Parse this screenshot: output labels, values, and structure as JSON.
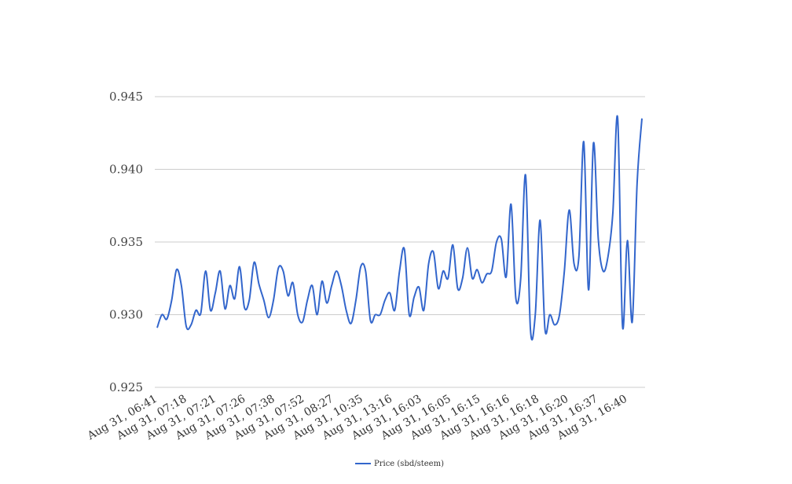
{
  "chart_data": {
    "type": "line",
    "title": "",
    "xlabel": "",
    "ylabel": "",
    "ylim": [
      0.925,
      0.945
    ],
    "yticks": [
      "0.925",
      "0.930",
      "0.935",
      "0.940",
      "0.945"
    ],
    "xtick_labels": [
      "Aug 31, 06:41",
      "Aug 31, 07:18",
      "Aug 31, 07:21",
      "Aug 31, 07:26",
      "Aug 31, 07:38",
      "Aug 31, 07:52",
      "Aug 31, 08:27",
      "Aug 31, 10:35",
      "Aug 31, 13:16",
      "Aug 31, 16:03",
      "Aug 31, 16:05",
      "Aug 31, 16:15",
      "Aug 31, 16:16",
      "Aug 31, 16:18",
      "Aug 31, 16:20",
      "Aug 31, 16:37",
      "Aug 31, 16:40"
    ],
    "grid": true,
    "legend_position": "bottom",
    "series": [
      {
        "name": "Price (sbd/steem)",
        "color": "#3366cc",
        "values": [
          0.9291,
          0.93,
          0.9297,
          0.931,
          0.9331,
          0.932,
          0.9292,
          0.9293,
          0.9303,
          0.9301,
          0.933,
          0.9303,
          0.9315,
          0.933,
          0.9304,
          0.932,
          0.9311,
          0.9333,
          0.9305,
          0.931,
          0.9336,
          0.9321,
          0.931,
          0.9298,
          0.931,
          0.9332,
          0.933,
          0.9313,
          0.9322,
          0.93,
          0.9295,
          0.931,
          0.932,
          0.93,
          0.9323,
          0.9308,
          0.932,
          0.933,
          0.932,
          0.9303,
          0.9294,
          0.931,
          0.9333,
          0.933,
          0.9296,
          0.93,
          0.93,
          0.931,
          0.9315,
          0.9303,
          0.933,
          0.9345,
          0.93,
          0.9312,
          0.9319,
          0.9303,
          0.9335,
          0.9343,
          0.9318,
          0.933,
          0.9325,
          0.9348,
          0.9318,
          0.9325,
          0.9346,
          0.9325,
          0.9331,
          0.9322,
          0.9328,
          0.933,
          0.935,
          0.9352,
          0.9326,
          0.9376,
          0.9311,
          0.9325,
          0.9396,
          0.929,
          0.93,
          0.9365,
          0.929,
          0.93,
          0.9293,
          0.93,
          0.933,
          0.9372,
          0.9335,
          0.934,
          0.9419,
          0.9317,
          0.9418,
          0.9352,
          0.933,
          0.934,
          0.937,
          0.9435,
          0.9292,
          0.9351,
          0.9295,
          0.939,
          0.9435
        ]
      }
    ]
  }
}
